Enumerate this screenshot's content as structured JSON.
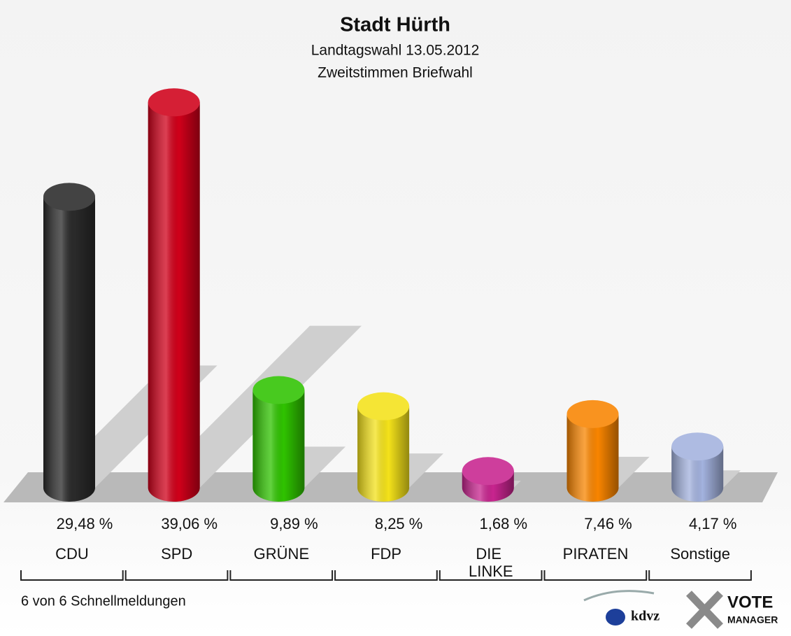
{
  "chart_data": {
    "type": "bar",
    "title": "Stadt Hürth",
    "subtitle": [
      "Landtagswahl 13.05.2012",
      "Zweitstimmen Briefwahl"
    ],
    "categories": [
      "CDU",
      "SPD",
      "GRÜNE",
      "FDP",
      "DIE LINKE",
      "PIRATEN",
      "Sonstige"
    ],
    "values": [
      29.48,
      39.06,
      9.89,
      8.25,
      1.68,
      7.46,
      4.17
    ],
    "value_labels": [
      "29,48 %",
      "39,06 %",
      "9,89 %",
      "8,25 %",
      "1,68 %",
      "7,46 %",
      "4,17 %"
    ],
    "colors": [
      "#2a2a2a",
      "#d0001a",
      "#2fc300",
      "#f4e21a",
      "#c8248f",
      "#f98500",
      "#a3b2de"
    ],
    "footnote": "6 von 6 Schnellmeldungen",
    "logos": [
      "kdvz",
      "VOTE",
      "MANAGER"
    ]
  }
}
